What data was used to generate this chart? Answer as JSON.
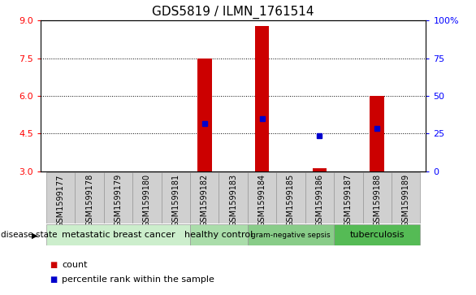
{
  "title": "GDS5819 / ILMN_1761514",
  "samples": [
    "GSM1599177",
    "GSM1599178",
    "GSM1599179",
    "GSM1599180",
    "GSM1599181",
    "GSM1599182",
    "GSM1599183",
    "GSM1599184",
    "GSM1599185",
    "GSM1599186",
    "GSM1599187",
    "GSM1599188",
    "GSM1599189"
  ],
  "bar_values": [
    3.0,
    3.0,
    3.0,
    3.0,
    3.0,
    7.5,
    3.0,
    8.8,
    3.0,
    3.1,
    3.0,
    6.0,
    3.0
  ],
  "percentile_values": [
    null,
    null,
    null,
    null,
    null,
    4.9,
    null,
    5.1,
    null,
    4.4,
    null,
    4.7,
    null
  ],
  "ylim": [
    3.0,
    9.0
  ],
  "yticks_left": [
    3,
    4.5,
    6,
    7.5,
    9
  ],
  "yticks_right": [
    0,
    25,
    50,
    75,
    100
  ],
  "bar_color": "#cc0000",
  "percentile_color": "#0000cc",
  "bar_width": 0.5,
  "disease_groups": [
    {
      "label": "metastatic breast cancer",
      "start": 0,
      "end": 4,
      "color": "#cceecc"
    },
    {
      "label": "healthy control",
      "start": 5,
      "end": 6,
      "color": "#aaddaa"
    },
    {
      "label": "gram-negative sepsis",
      "start": 7,
      "end": 9,
      "color": "#88cc88"
    },
    {
      "label": "tuberculosis",
      "start": 10,
      "end": 12,
      "color": "#55bb55"
    }
  ],
  "disease_label": "disease state",
  "legend_count_label": "count",
  "legend_percentile_label": "percentile rank within the sample",
  "sample_bg_color": "#d0d0d0",
  "sample_border_color": "#999999",
  "title_fontsize": 11,
  "tick_fontsize": 8,
  "sample_fontsize": 7,
  "group_label_fontsize": 8,
  "legend_fontsize": 8
}
